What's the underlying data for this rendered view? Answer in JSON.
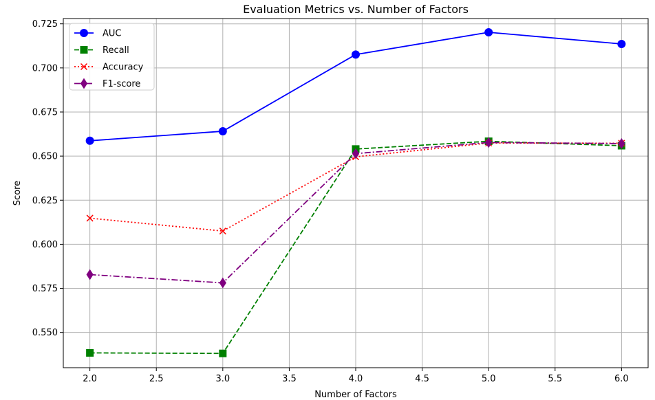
{
  "chart_data": {
    "type": "line",
    "title": "Evaluation Metrics vs. Number of Factors",
    "xlabel": "Number of Factors",
    "ylabel": "Score",
    "x": [
      2.0,
      3.0,
      4.0,
      5.0,
      6.0
    ],
    "xlim": [
      1.8,
      6.2
    ],
    "ylim": [
      0.53,
      0.728
    ],
    "xticks": [
      "2.0",
      "2.5",
      "3.0",
      "3.5",
      "4.0",
      "4.5",
      "5.0",
      "5.5",
      "6.0"
    ],
    "yticks": [
      "0.550",
      "0.575",
      "0.600",
      "0.625",
      "0.650",
      "0.675",
      "0.700",
      "0.725"
    ],
    "grid": true,
    "legend_position": "top-left",
    "series": [
      {
        "name": "AUC",
        "color": "#0000ff",
        "line_style": "solid",
        "marker": "circle",
        "values": [
          0.6587,
          0.6641,
          0.7076,
          0.7202,
          0.7136
        ]
      },
      {
        "name": "Recall",
        "color": "#008000",
        "line_style": "dashed",
        "marker": "square",
        "values": [
          0.5384,
          0.5381,
          0.654,
          0.6584,
          0.6559
        ]
      },
      {
        "name": "Accuracy",
        "color": "#ff0000",
        "line_style": "dotted",
        "marker": "x",
        "values": [
          0.6148,
          0.6075,
          0.6496,
          0.6574,
          0.6573
        ]
      },
      {
        "name": "F1-score",
        "color": "#800080",
        "line_style": "dashdot",
        "marker": "diamond",
        "values": [
          0.5828,
          0.5781,
          0.6514,
          0.6577,
          0.6571
        ]
      }
    ]
  }
}
